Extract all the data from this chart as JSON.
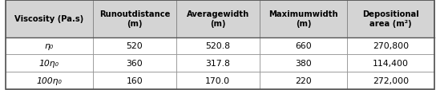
{
  "headers": [
    "Viscosity (Pa.s)",
    "Runout distance\n(m)",
    "Average width\n(m)",
    "Maximum width\n(m)",
    "Depositional\narea (m²)"
  ],
  "header_display": [
    "Viscosity (Pa.s)",
    "Runoutdistance\n(m)",
    "Averagewidth\n(m)",
    "Maximumwidth\n(m)",
    "Depositional\narea (m²)"
  ],
  "rows": [
    [
      "η₀",
      "520",
      "520.8",
      "660",
      "270,800"
    ],
    [
      "10η₀",
      "360",
      "317.8",
      "380",
      "114,400"
    ],
    [
      "100η₀",
      "160",
      "170.0",
      "220",
      "272,000"
    ]
  ],
  "header_bg": "#d4d4d4",
  "row_bg": "#ffffff",
  "border_color": "#888888",
  "outer_border_color": "#555555",
  "text_color": "#000000",
  "header_fontsize": 7.2,
  "data_fontsize": 7.8,
  "figsize": [
    5.49,
    1.14
  ],
  "dpi": 100
}
